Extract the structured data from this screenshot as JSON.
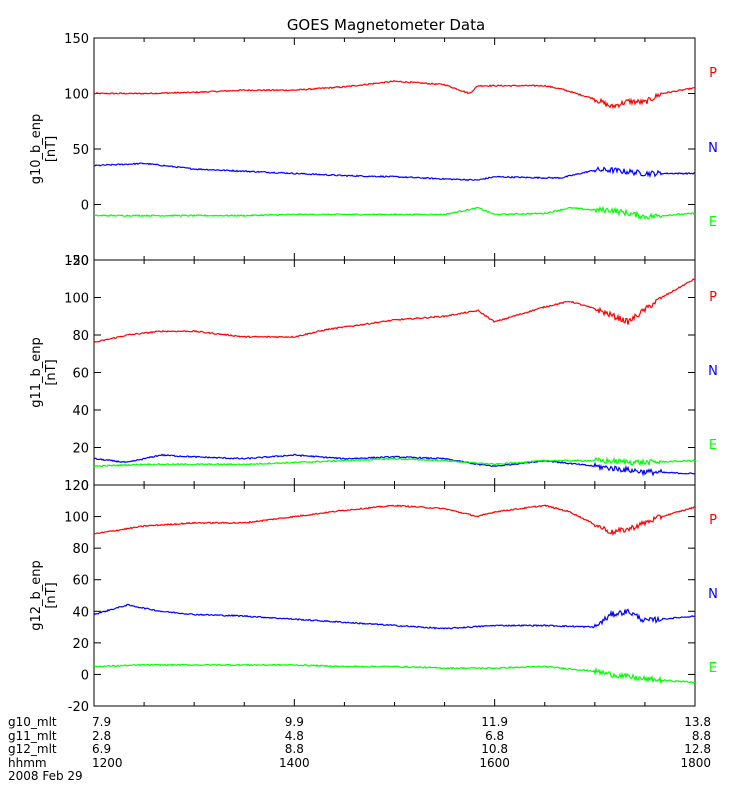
{
  "chart_data": {
    "type": "line",
    "title": "GOES Magnetometer Data",
    "x_ticks_hhmm": [
      "1200",
      "1400",
      "1600",
      "1800"
    ],
    "panels": [
      {
        "ylabel": "g10_b_enp",
        "unit": "[nT]",
        "ylim": [
          -50,
          150
        ],
        "yticks": [
          "150",
          "100",
          "50",
          "0",
          "-50"
        ],
        "series": [
          {
            "name": "P",
            "color": "#ff0000",
            "x": [
              1200,
              1230,
              1300,
              1330,
              1400,
              1430,
              1500,
              1530,
              1545,
              1550,
              1600,
              1630,
              1640,
              1700,
              1710,
              1720,
              1730,
              1740,
              1800
            ],
            "y": [
              100,
              100,
              101,
              103,
              103,
              106,
              111,
              108,
              100,
              107,
              107,
              107,
              104,
              95,
              88,
              93,
              92,
              100,
              105
            ]
          },
          {
            "name": "N",
            "color": "#0000ff",
            "x": [
              1200,
              1230,
              1300,
              1330,
              1400,
              1430,
              1500,
              1530,
              1550,
              1600,
              1630,
              1640,
              1700,
              1710,
              1730,
              1800
            ],
            "y": [
              35,
              37,
              32,
              30,
              28,
              26,
              25,
              23,
              22,
              25,
              24,
              24,
              31,
              31,
              28,
              28
            ]
          },
          {
            "name": "E",
            "color": "#00ff00",
            "x": [
              1200,
              1230,
              1300,
              1330,
              1400,
              1430,
              1500,
              1530,
              1550,
              1600,
              1630,
              1645,
              1700,
              1710,
              1730,
              1800
            ],
            "y": [
              -10,
              -10,
              -10,
              -10,
              -9,
              -9,
              -9,
              -9,
              -3,
              -9,
              -8,
              -3,
              -5,
              -5,
              -11,
              -8
            ]
          }
        ]
      },
      {
        "ylabel": "g11_b_enp",
        "unit": "[nT]",
        "ylim": [
          0,
          120
        ],
        "yticks": [
          "120",
          "100",
          "80",
          "60",
          "40",
          "20",
          "0"
        ],
        "series": [
          {
            "name": "P",
            "color": "#ff0000",
            "x": [
              1200,
              1220,
              1240,
              1300,
              1330,
              1400,
              1420,
              1500,
              1530,
              1550,
              1600,
              1630,
              1645,
              1700,
              1720,
              1740,
              1800
            ],
            "y": [
              76,
              80,
              82,
              82,
              79,
              79,
              83,
              88,
              90,
              93,
              87,
              95,
              98,
              94,
              87,
              100,
              110
            ]
          },
          {
            "name": "N",
            "color": "#0000ff",
            "x": [
              1200,
              1220,
              1240,
              1300,
              1330,
              1400,
              1430,
              1500,
              1530,
              1550,
              1600,
              1630,
              1700,
              1730,
              1800
            ],
            "y": [
              14,
              12,
              16,
              15,
              14,
              16,
              14,
              15,
              14,
              11,
              10,
              13,
              10,
              7,
              6
            ]
          },
          {
            "name": "E",
            "color": "#00ff00",
            "x": [
              1200,
              1230,
              1300,
              1330,
              1400,
              1430,
              1500,
              1530,
              1600,
              1630,
              1700,
              1730,
              1800
            ],
            "y": [
              10,
              11,
              11,
              11,
              12,
              13,
              14,
              13,
              11,
              13,
              13,
              12,
              13
            ]
          }
        ]
      },
      {
        "ylabel": "g12_b_enp",
        "unit": "[nT]",
        "ylim": [
          -20,
          120
        ],
        "yticks": [
          "120",
          "100",
          "80",
          "60",
          "40",
          "20",
          "0",
          "-20"
        ],
        "series": [
          {
            "name": "P",
            "color": "#ff0000",
            "x": [
              1200,
              1230,
              1300,
              1330,
              1400,
              1430,
              1500,
              1530,
              1550,
              1600,
              1630,
              1645,
              1700,
              1710,
              1720,
              1740,
              1800
            ],
            "y": [
              89,
              94,
              96,
              96,
              100,
              104,
              107,
              105,
              100,
              103,
              107,
              103,
              95,
              90,
              92,
              100,
              106
            ]
          },
          {
            "name": "N",
            "color": "#0000ff",
            "x": [
              1200,
              1220,
              1240,
              1300,
              1330,
              1400,
              1430,
              1500,
              1530,
              1600,
              1630,
              1700,
              1710,
              1720,
              1730,
              1800
            ],
            "y": [
              38,
              44,
              40,
              38,
              37,
              35,
              33,
              31,
              29,
              31,
              31,
              30,
              38,
              40,
              34,
              37
            ]
          },
          {
            "name": "E",
            "color": "#00ff00",
            "x": [
              1200,
              1230,
              1300,
              1330,
              1400,
              1430,
              1500,
              1530,
              1600,
              1630,
              1700,
              1710,
              1730,
              1800
            ],
            "y": [
              5,
              6,
              6,
              6,
              6,
              5,
              5,
              4,
              4,
              5,
              2,
              0,
              -3,
              -5
            ]
          }
        ]
      }
    ],
    "bottom_table": {
      "rows": [
        {
          "label": "g10_mlt",
          "values": [
            "7.9",
            "9.9",
            "11.9",
            "13.8"
          ]
        },
        {
          "label": "g11_mlt",
          "values": [
            "2.8",
            "4.8",
            "6.8",
            "8.8"
          ]
        },
        {
          "label": "g12_mlt",
          "values": [
            "6.9",
            "8.8",
            "10.8",
            "12.8"
          ]
        },
        {
          "label": "hhmm",
          "values": [
            "1200",
            "1400",
            "1600",
            "1800"
          ]
        }
      ],
      "date": "2008 Feb 29"
    }
  }
}
